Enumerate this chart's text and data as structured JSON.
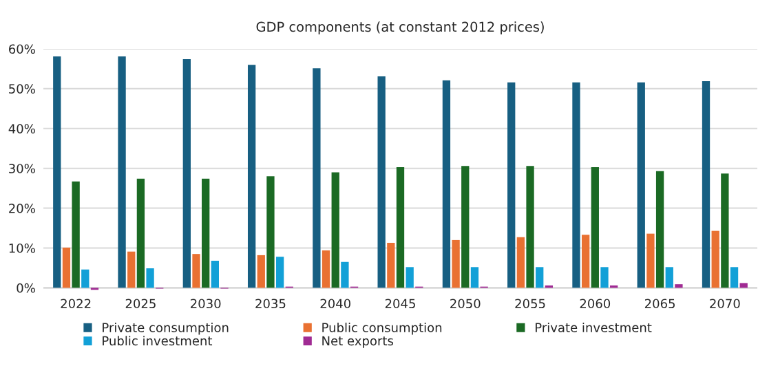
{
  "chart_data": {
    "type": "bar",
    "title": "GDP components (at constant 2012 prices)",
    "categories": [
      "2022",
      "2025",
      "2030",
      "2035",
      "2040",
      "2045",
      "2050",
      "2055",
      "2060",
      "2065",
      "2070"
    ],
    "series": [
      {
        "name": "Private consumption",
        "color": "#175f82",
        "values": [
          58.1,
          58.1,
          57.4,
          56.0,
          55.1,
          53.1,
          52.1,
          51.6,
          51.6,
          51.6,
          51.9
        ]
      },
      {
        "name": "Public consumption",
        "color": "#e97132",
        "values": [
          10.1,
          9.1,
          8.5,
          8.2,
          9.4,
          11.3,
          12.0,
          12.7,
          13.3,
          13.6,
          14.3
        ]
      },
      {
        "name": "Private investment",
        "color": "#1b6a24",
        "values": [
          26.7,
          27.4,
          27.4,
          28.0,
          29.0,
          30.3,
          30.6,
          30.6,
          30.3,
          29.3,
          28.7
        ]
      },
      {
        "name": "Public investment",
        "color": "#12a0d7",
        "values": [
          4.6,
          4.9,
          6.8,
          7.8,
          6.5,
          5.2,
          5.2,
          5.2,
          5.2,
          5.2,
          5.2
        ]
      },
      {
        "name": "Net exports",
        "color": "#a02b93",
        "values": [
          -0.5,
          -0.2,
          -0.2,
          0.3,
          0.3,
          0.3,
          0.3,
          0.6,
          0.6,
          0.9,
          1.2
        ]
      }
    ],
    "ylim": [
      -0.8,
      60
    ],
    "yticks": [
      {
        "value": 0,
        "label": "0%"
      },
      {
        "value": 10,
        "label": "10%"
      },
      {
        "value": 20,
        "label": "20%"
      },
      {
        "value": 30,
        "label": "30%"
      },
      {
        "value": 40,
        "label": "40%"
      },
      {
        "value": 50,
        "label": "50%"
      },
      {
        "value": 60,
        "label": "60%"
      }
    ],
    "grid": "y",
    "legend": "bottom"
  }
}
